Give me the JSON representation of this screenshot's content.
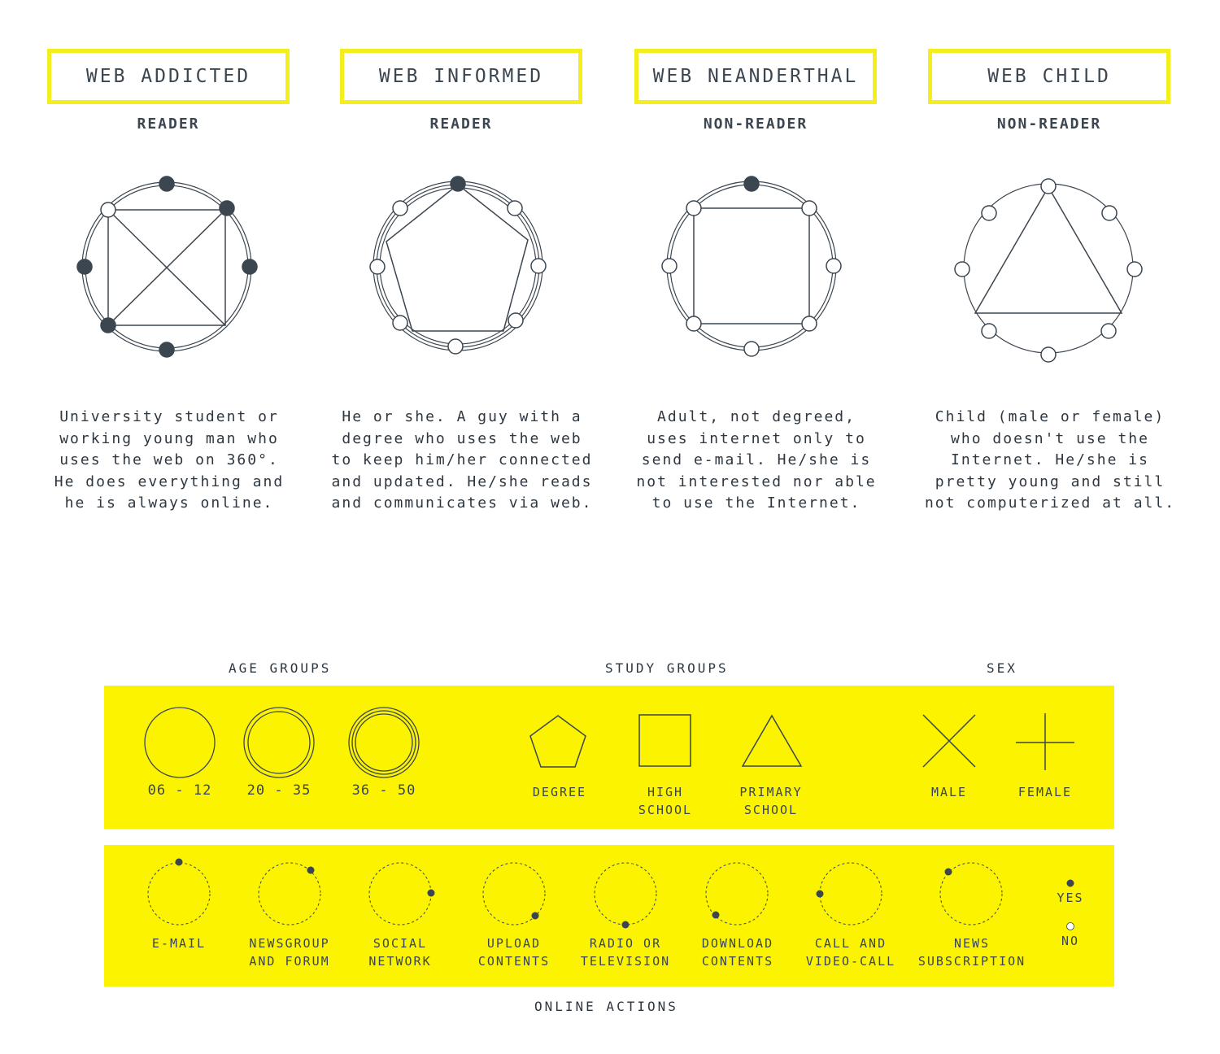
{
  "profiles": [
    {
      "title": "WEB ADDICTED",
      "type": "READER",
      "description": "University student or\nworking young man who\nuses the web on 360°.\nHe does everything and\nhe is always online."
    },
    {
      "title": "WEB INFORMED",
      "type": "READER",
      "description": "He or she. A guy with a\ndegree who uses the web\nto keep him/her connected\nand updated. He/she reads\nand communicates via web."
    },
    {
      "title": "WEB NEANDERTHAL",
      "type": "NON-READER",
      "description": "Adult, not degreed,\nuses internet only to\nsend e-mail. He/she is\nnot interested nor able\nto use the Internet."
    },
    {
      "title": "WEB CHILD",
      "type": "NON-READER",
      "description": "Child (male or female)\nwho doesn't use the\nInternet. He/she is\npretty young and still\nnot computerized at all."
    }
  ],
  "legend": {
    "age_groups_label": "AGE GROUPS",
    "study_groups_label": "STUDY GROUPS",
    "sex_label": "SEX",
    "age_groups": [
      "06 - 12",
      "20 - 35",
      "36 - 50"
    ],
    "study_groups": [
      "DEGREE",
      "HIGH\nSCHOOL",
      "PRIMARY\nSCHOOL"
    ],
    "sex": [
      "MALE",
      "FEMALE"
    ],
    "online_actions_label": "ONLINE ACTIONS",
    "online_actions": [
      "E-MAIL",
      "NEWSGROUP\nAND FORUM",
      "SOCIAL\nNETWORK",
      "UPLOAD\nCONTENTS",
      "RADIO OR\nTELEVISION",
      "DOWNLOAD\nCONTENTS",
      "CALL AND\nVIDEO-CALL",
      "NEWS\nSUBSCRIPTION"
    ],
    "yes_label": "YES",
    "no_label": "NO"
  },
  "colors": {
    "accent_yellow": "#fbf300",
    "box_yellow": "#f4ef1c",
    "ink": "#3c4650"
  }
}
